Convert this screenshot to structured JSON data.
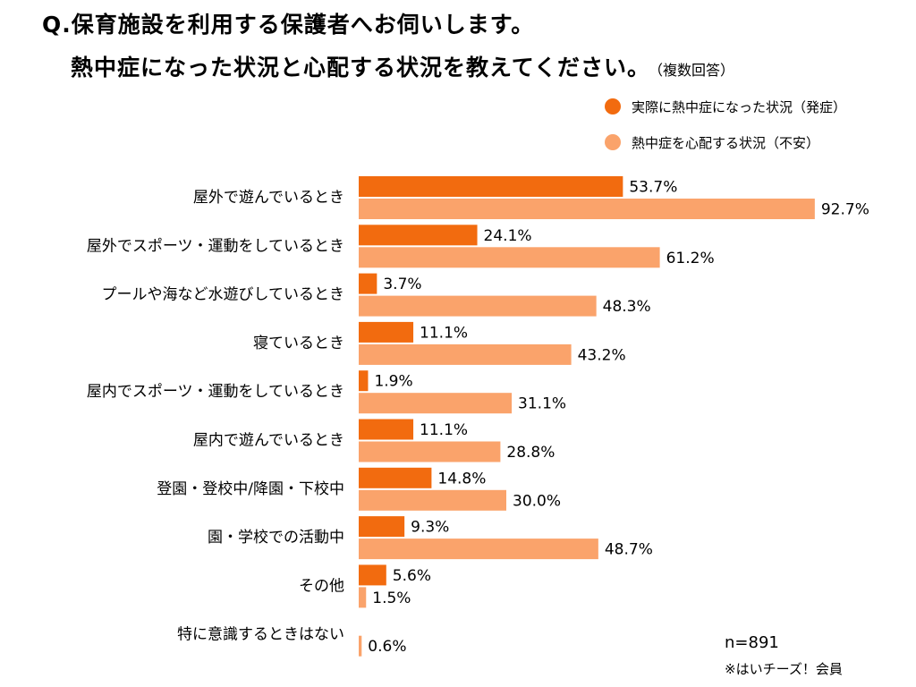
{
  "header": {
    "title_line1": "Q.保育施設を利用する保護者へお伺いします。",
    "title_line2": "熱中症になった状況と心配する状況を教えてください。",
    "title_note": "（複数回答）"
  },
  "colors": {
    "series_1": "#f26b0f",
    "series_2": "#faa36b"
  },
  "chart_data": {
    "type": "bar",
    "orientation": "horizontal",
    "title": "熱中症になった状況と心配する状況を教えてください。",
    "categories": [
      "屋外で遊んでいるとき",
      "屋外でスポーツ・運動をしているとき",
      "プールや海など水遊びしているとき",
      "寝ているとき",
      "屋内でスポーツ・運動をしているとき",
      "屋内で遊んでいるとき",
      "登園・登校中/降園・下校中",
      "園・学校での活動中",
      "その他",
      "特に意識するときはない"
    ],
    "series": [
      {
        "name": "実際に熱中症になった状況（発症）",
        "values": [
          53.7,
          24.1,
          3.7,
          11.1,
          1.9,
          11.1,
          14.8,
          9.3,
          5.6,
          null
        ],
        "labels": [
          "53.7%",
          "24.1%",
          "3.7%",
          "11.1%",
          "1.9%",
          "11.1%",
          "14.8%",
          "9.3%",
          "5.6%",
          null
        ]
      },
      {
        "name": "熱中症を心配する状況（不安）",
        "values": [
          92.7,
          61.2,
          48.3,
          43.2,
          31.1,
          28.8,
          30.0,
          48.7,
          1.5,
          0.6
        ],
        "labels": [
          "92.7%",
          "61.2%",
          "48.3%",
          "43.2%",
          "31.1%",
          "28.8%",
          "30.0%",
          "48.7%",
          "1.5%",
          "0.6%"
        ]
      }
    ],
    "xlim": [
      0,
      100
    ],
    "grid": false,
    "legend_position": "top-right",
    "unit": "%"
  },
  "footer": {
    "sample_size": "n=891",
    "source": "※はいチーズ！会員"
  }
}
